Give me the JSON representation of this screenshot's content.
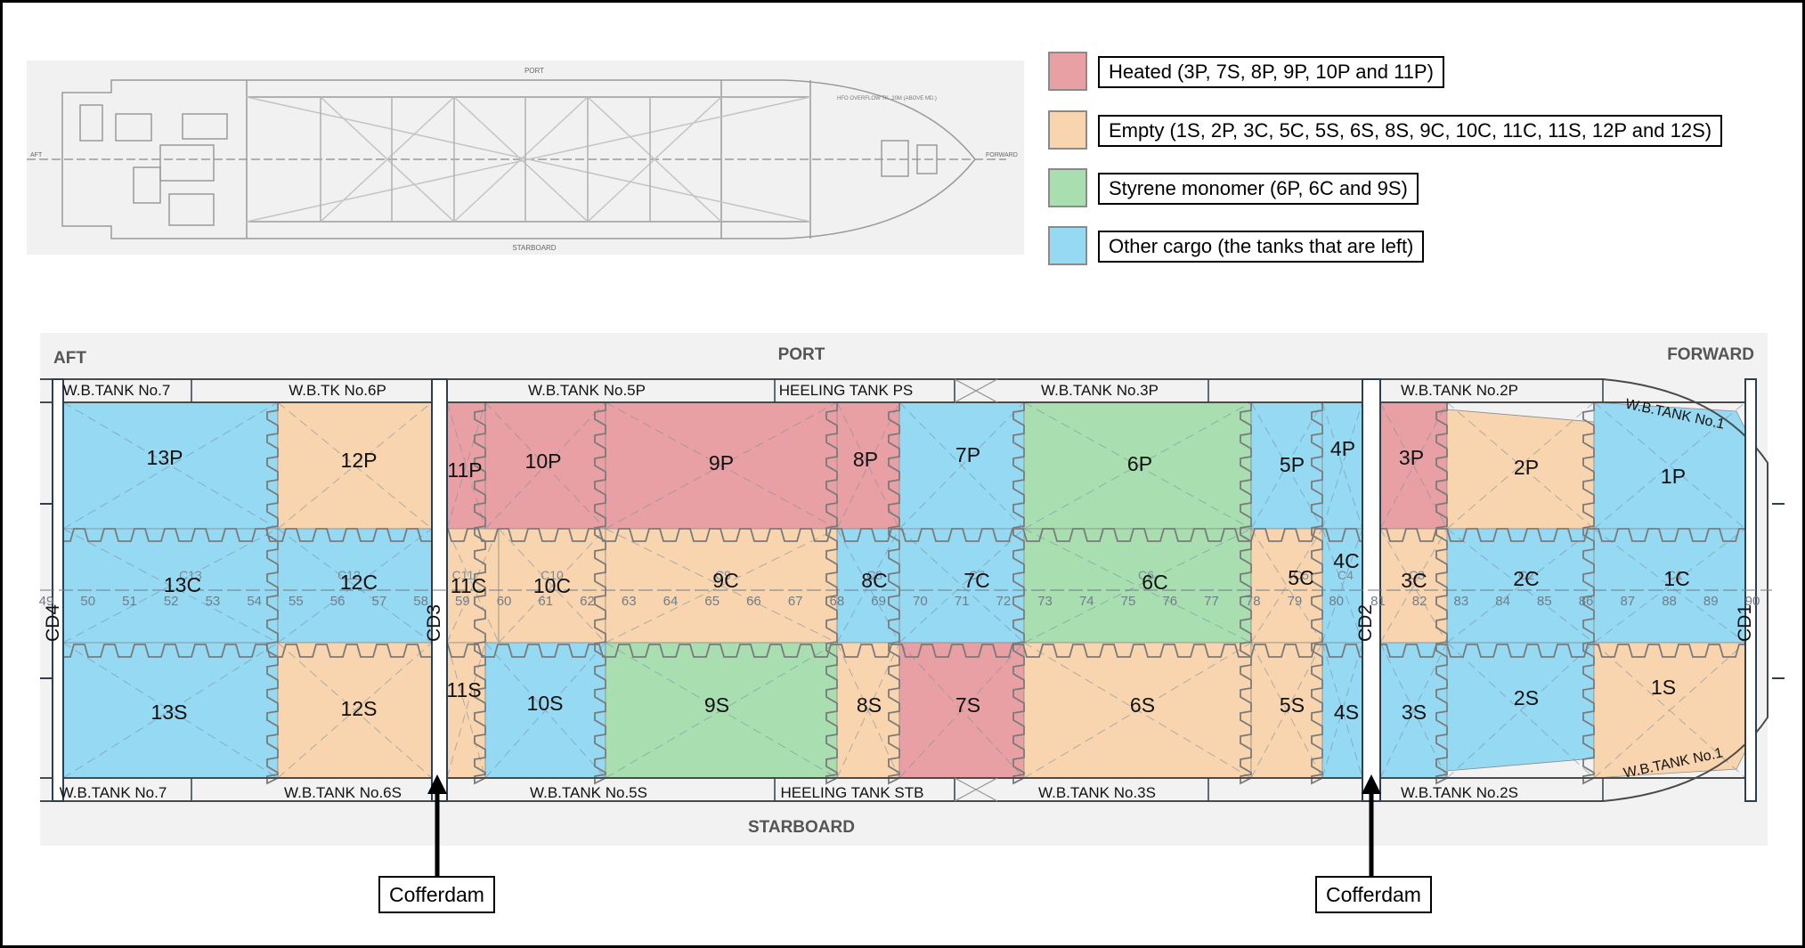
{
  "legend": [
    {
      "label": "Heated (3P, 7S, 8P, 9P, 10P and 11P)",
      "color": "#e8a0a4"
    },
    {
      "label": "Empty (1S, 2P, 3C, 5C, 5S, 6S, 8S, 9C, 10C, 11C, 11S, 12P and 12S)",
      "color": "#f8d5ae"
    },
    {
      "label": "Styrene monomer (6P, 6C and 9S)",
      "color": "#a9dfb0"
    },
    {
      "label": "Other cargo (the tanks that are left)",
      "color": "#95d9f3"
    }
  ],
  "thumbnail": {
    "port": "PORT",
    "starboard": "STARBOARD",
    "aft": "AFT",
    "forward": "FORWARD",
    "note": "HFO OVERFLOW TK. 20M (ABOVE MD.)"
  },
  "plan": {
    "aft": "AFT",
    "port": "PORT",
    "forward": "FORWARD",
    "starboard": "STARBOARD",
    "top_ballast": [
      "W.B.TANK No.7",
      "W.B.TK No.6P",
      "W.B.TANK No.5P",
      "HEELING TANK PS",
      "W.B.TANK No.3P",
      "W.B.TANK No.2P",
      "W.B.TANK No.1"
    ],
    "bottom_ballast": [
      "W.B.TANK No.7",
      "W.B.TANK No.6S",
      "W.B.TANK No.5S",
      "HEELING TANK STB",
      "W.B.TANK No.3S",
      "W.B.TANK No.2S",
      "W.B.TANK No.1"
    ],
    "cofferdams": [
      "CD4",
      "CD3",
      "CD2",
      "CD1"
    ],
    "frames": [
      "49",
      "50",
      "51",
      "52",
      "53",
      "54",
      "55",
      "56",
      "57",
      "58",
      "59",
      "60",
      "61",
      "62",
      "63",
      "64",
      "65",
      "66",
      "67",
      "68",
      "69",
      "70",
      "71",
      "72",
      "73",
      "74",
      "75",
      "76",
      "77",
      "78",
      "79",
      "80",
      "81",
      "82",
      "83",
      "84",
      "85",
      "86",
      "87",
      "88",
      "89",
      "90"
    ],
    "faint_tank_ids": [
      "C13",
      "C12",
      "C11",
      "C10",
      "C9",
      "C8",
      "C7",
      "C6",
      "C5",
      "C4",
      "C3",
      "C2",
      "C1"
    ],
    "tanks": [
      "13P",
      "13C",
      "13S",
      "12P",
      "12C",
      "12S",
      "11P",
      "11C",
      "11S",
      "10P",
      "10C",
      "10S",
      "9P",
      "9C",
      "9S",
      "8P",
      "8C",
      "8S",
      "7P",
      "7C",
      "7S",
      "6P",
      "6C",
      "6S",
      "5P",
      "5C",
      "5S",
      "4P",
      "4C",
      "4S",
      "3P",
      "3C",
      "3S",
      "2P",
      "2C",
      "2S",
      "1P",
      "1C",
      "1S"
    ]
  },
  "callouts": [
    "Cofferdam",
    "Cofferdam"
  ]
}
